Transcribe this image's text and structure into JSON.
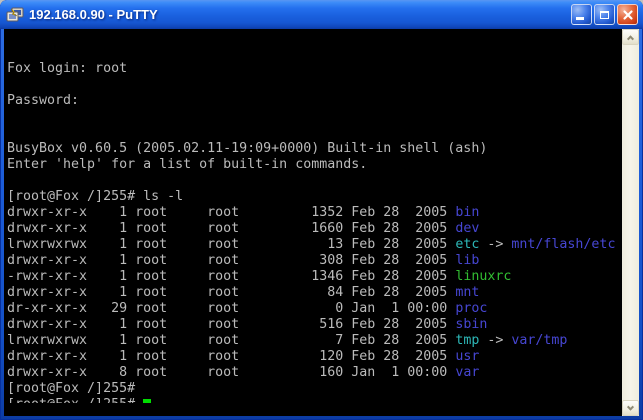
{
  "titlebar": {
    "title": "192.168.0.90 - PuTTY",
    "icons": {
      "app": "putty-terminals-icon",
      "minimize": "minimize-icon",
      "maximize": "maximize-icon",
      "close": "close-icon"
    }
  },
  "palette": {
    "titlebar_main": "#1C60DE",
    "border_blue": "#1450C6",
    "terminal_bg": "#000000",
    "fg": "#BBBBBB",
    "dir": "#4646D2",
    "symlink": "#2DB7B7",
    "exec": "#32BE32",
    "cursor": "#00DD00",
    "close_red": "#CE3C14",
    "sb_track": "#F2F0E3"
  },
  "terminal": {
    "lines": [
      {
        "segments": []
      },
      {
        "segments": [
          {
            "text": "Fox login: root"
          }
        ]
      },
      {
        "segments": []
      },
      {
        "segments": [
          {
            "text": "Password:"
          }
        ]
      },
      {
        "segments": []
      },
      {
        "segments": []
      },
      {
        "segments": [
          {
            "text": "BusyBox v0.60.5 (2005.02.11-19:09+0000) Built-in shell (ash)"
          }
        ]
      },
      {
        "segments": [
          {
            "text": "Enter 'help' for a list of built-in commands."
          }
        ]
      },
      {
        "segments": []
      },
      {
        "segments": [
          {
            "text": "[root@Fox /]255# ls -l"
          }
        ]
      },
      {
        "segments": [
          {
            "text": "drwxr-xr-x    1 root     root         1352 Feb 28  2005 "
          },
          {
            "text": "bin",
            "color": "dir"
          }
        ]
      },
      {
        "segments": [
          {
            "text": "drwxr-xr-x    1 root     root         1660 Feb 28  2005 "
          },
          {
            "text": "dev",
            "color": "dir"
          }
        ]
      },
      {
        "segments": [
          {
            "text": "lrwxrwxrwx    1 root     root           13 Feb 28  2005 "
          },
          {
            "text": "etc",
            "color": "symlink"
          },
          {
            "text": " -> "
          },
          {
            "text": "mnt/flash/etc",
            "color": "dir"
          }
        ]
      },
      {
        "segments": [
          {
            "text": "drwxr-xr-x    1 root     root          308 Feb 28  2005 "
          },
          {
            "text": "lib",
            "color": "dir"
          }
        ]
      },
      {
        "segments": [
          {
            "text": "-rwxr-xr-x    1 root     root         1346 Feb 28  2005 "
          },
          {
            "text": "linuxrc",
            "color": "exec"
          }
        ]
      },
      {
        "segments": [
          {
            "text": "drwxr-xr-x    1 root     root           84 Feb 28  2005 "
          },
          {
            "text": "mnt",
            "color": "dir"
          }
        ]
      },
      {
        "segments": [
          {
            "text": "dr-xr-xr-x   29 root     root            0 Jan  1 00:00 "
          },
          {
            "text": "proc",
            "color": "dir"
          }
        ]
      },
      {
        "segments": [
          {
            "text": "drwxr-xr-x    1 root     root          516 Feb 28  2005 "
          },
          {
            "text": "sbin",
            "color": "dir"
          }
        ]
      },
      {
        "segments": [
          {
            "text": "lrwxrwxrwx    1 root     root            7 Feb 28  2005 "
          },
          {
            "text": "tmp",
            "color": "symlink"
          },
          {
            "text": " -> "
          },
          {
            "text": "var/tmp",
            "color": "dir"
          }
        ]
      },
      {
        "segments": [
          {
            "text": "drwxr-xr-x    1 root     root          120 Feb 28  2005 "
          },
          {
            "text": "usr",
            "color": "dir"
          }
        ]
      },
      {
        "segments": [
          {
            "text": "drwxr-xr-x    8 root     root          160 Jan  1 00:00 "
          },
          {
            "text": "var",
            "color": "dir"
          }
        ]
      },
      {
        "segments": [
          {
            "text": "[root@Fox /]255#"
          }
        ]
      },
      {
        "segments": [
          {
            "text": "[root@Fox /]255# "
          }
        ],
        "cursor": true
      }
    ]
  }
}
